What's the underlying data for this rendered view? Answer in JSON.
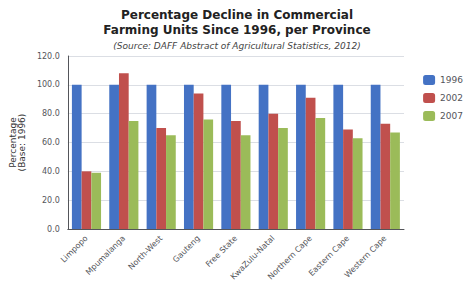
{
  "chart_data": {
    "type": "bar",
    "title": "Percentage Decline in Commercial\nFarming Units Since 1996, per Province",
    "subtitle": "(Source: DAFF Abstract of Agricultural Statistics, 2012)",
    "ylabel": "Percentage\n(Base: 1996)",
    "categories": [
      "Limpopo",
      "Mpumalanga",
      "North-West",
      "Gauteng",
      "Free State",
      "KwaZulu-Natal",
      "Northern Cape",
      "Eastern Cape",
      "Western Cape"
    ],
    "series": [
      {
        "name": "1996",
        "color": "#4472C4",
        "values": [
          100,
          100,
          100,
          100,
          100,
          100,
          100,
          100,
          100
        ]
      },
      {
        "name": "2002",
        "color": "#C0504D",
        "values": [
          40,
          108,
          70,
          94,
          75,
          80,
          91,
          69,
          73
        ]
      },
      {
        "name": "2007",
        "color": "#9BBB59",
        "values": [
          39,
          75,
          65,
          76,
          65,
          70,
          77,
          63,
          67
        ]
      }
    ],
    "ylim": [
      0,
      120
    ],
    "yticks": [
      {
        "value": 0,
        "label": "0.0"
      },
      {
        "value": 20,
        "label": "20.0"
      },
      {
        "value": 40,
        "label": "40.0"
      },
      {
        "value": 60,
        "label": "60.0"
      },
      {
        "value": 80,
        "label": "80.0"
      },
      {
        "value": 100,
        "label": "100.0"
      },
      {
        "value": 120,
        "label": "120.0"
      }
    ],
    "grid": true,
    "legend": "right"
  }
}
